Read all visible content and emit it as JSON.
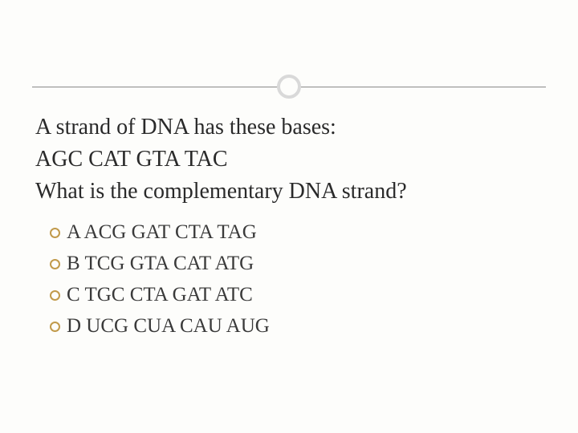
{
  "slide": {
    "background_color": "#fdfdfb",
    "accent_circle": {
      "border_color": "#d9d9d9",
      "border_width": 4,
      "diameter": 30
    },
    "divider_line_color": "#888888",
    "question": {
      "line1": "A strand of DNA has these bases:",
      "line2": "AGC CAT GTA TAC",
      "line3": "What is the complementary DNA strand?",
      "font_size": 28,
      "color": "#2a2a2a"
    },
    "options": [
      {
        "label": "A ACG GAT CTA TAG"
      },
      {
        "label": "B TCG GTA CAT ATG"
      },
      {
        "label": "C TGC CTA GAT ATC"
      },
      {
        "label": "D UCG CUA CAU AUG"
      }
    ],
    "option_style": {
      "bullet_border_color": "#c19a4b",
      "bullet_border_width": 2.5,
      "bullet_diameter": 13,
      "font_size": 25,
      "text_color": "#3a3a3a"
    }
  }
}
